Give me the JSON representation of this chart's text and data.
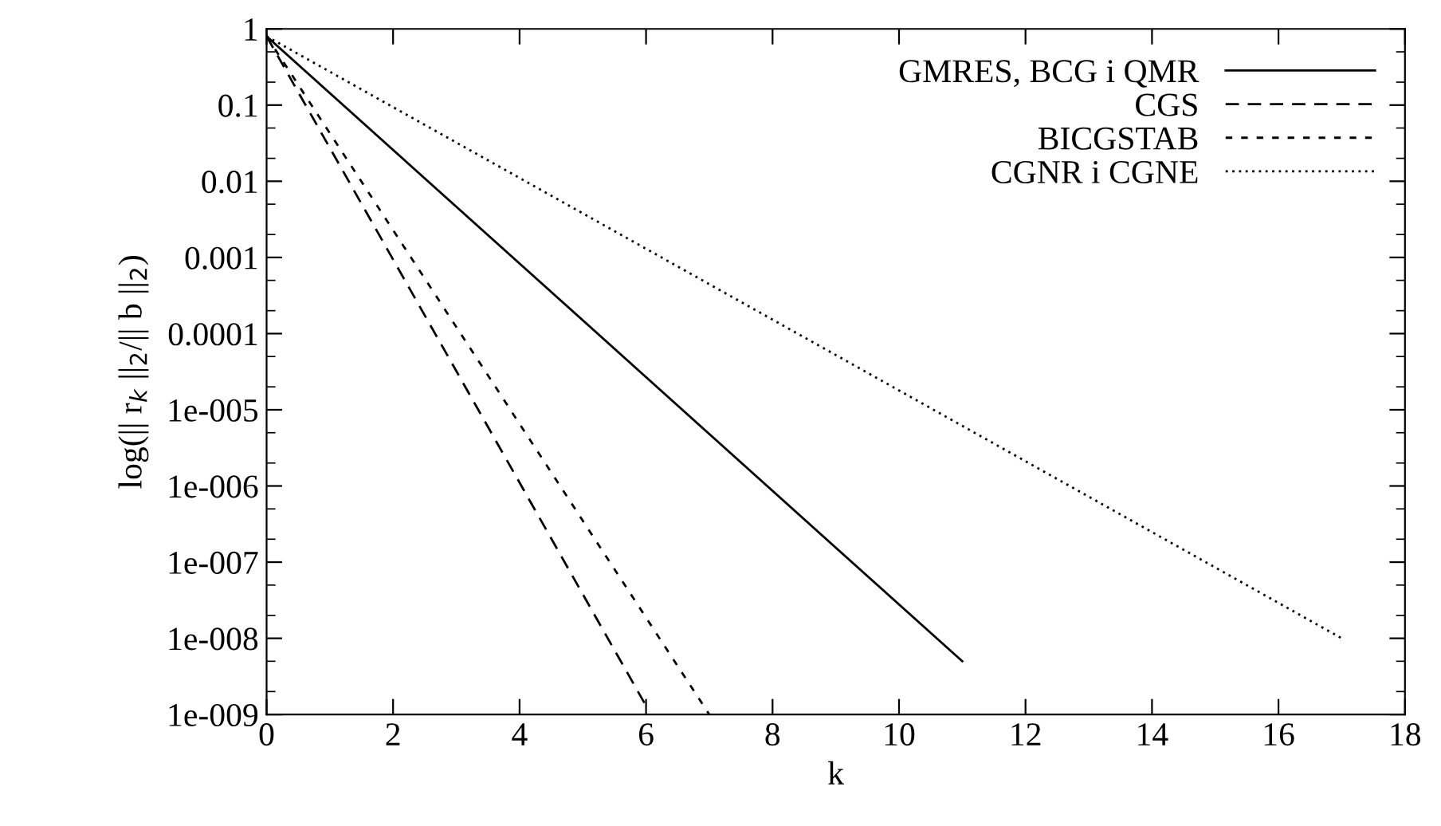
{
  "chart_data": {
    "type": "line",
    "xlabel": "k",
    "ylabel": "log(|| r$_{k}$ ||$_{2}$/|| b ||$_{2}$)",
    "log": "y",
    "xlim": [
      0,
      18
    ],
    "xticks": [
      0,
      2,
      4,
      6,
      8,
      10,
      12,
      14,
      16,
      18
    ],
    "ylim": [
      1e-09,
      1
    ],
    "yticks": [
      {
        "value": 1e-09,
        "label": "1e-009"
      },
      {
        "value": 1e-08,
        "label": "1e-008"
      },
      {
        "value": 1e-07,
        "label": "1e-007"
      },
      {
        "value": 1e-06,
        "label": "1e-006"
      },
      {
        "value": 1e-05,
        "label": "1e-005"
      },
      {
        "value": 0.0001,
        "label": "0.0001"
      },
      {
        "value": 0.001,
        "label": "0.001"
      },
      {
        "value": 0.01,
        "label": "0.01"
      },
      {
        "value": 0.1,
        "label": "0.1"
      },
      {
        "value": 1,
        "label": "1"
      }
    ],
    "legend": "top right",
    "grid": false,
    "series": [
      {
        "name": "GMRES, BCG i QMR",
        "color": "#000000",
        "line_style": "solid",
        "x": [
          0,
          11
        ],
        "values": [
          0.8,
          5e-09
        ]
      },
      {
        "name": "CGS",
        "color": "#000000",
        "line_style": "dashed",
        "x": [
          0,
          6
        ],
        "values": [
          0.8,
          1.3e-09
        ]
      },
      {
        "name": "BICGSTAB",
        "color": "#000000",
        "line_style": "dashed",
        "x": [
          0,
          7
        ],
        "values": [
          0.8,
          1e-09
        ]
      },
      {
        "name": "CGNR i CGNE",
        "color": "#000000",
        "line_style": "dotted",
        "x": [
          0,
          17
        ],
        "values": [
          0.8,
          1e-08
        ]
      }
    ]
  }
}
